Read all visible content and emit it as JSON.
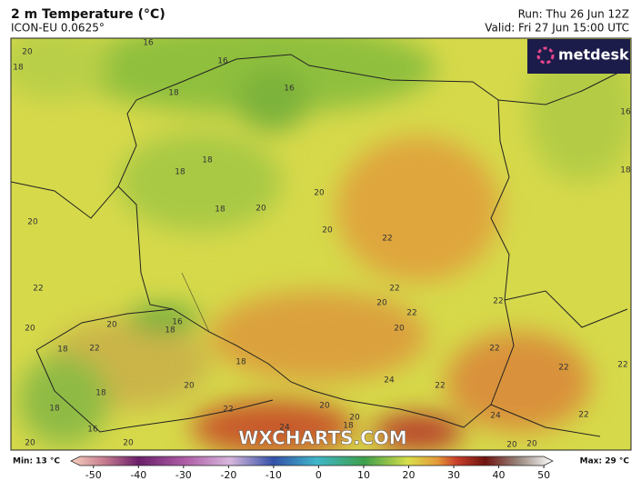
{
  "header": {
    "title": "2 m Temperature (°C)",
    "model": "ICON-EU 0.0625°",
    "run": "Run: Thu 26 Jun 12Z",
    "valid": "Valid: Fri 27 Jun 15:00 UTC"
  },
  "brand": "metdesk",
  "watermark": "WXCHARTS.COM",
  "contour_labels": [
    16,
    16,
    16,
    20,
    18,
    18,
    18,
    18,
    18,
    20,
    20,
    20,
    20,
    22,
    22,
    20,
    22,
    20,
    22,
    22,
    20,
    20,
    16,
    18,
    18,
    22,
    18,
    22,
    22,
    22,
    24,
    20,
    18,
    22,
    22,
    20,
    24,
    20,
    18,
    24,
    16,
    18,
    22,
    20,
    20,
    20,
    20,
    16,
    18
  ],
  "colorbar": {
    "min_label": "Min: 13 °C",
    "max_label": "Max: 29 °C",
    "range": [
      -55,
      52
    ],
    "ticks": [
      -50,
      -40,
      -30,
      -20,
      -10,
      0,
      10,
      20,
      30,
      40,
      50
    ]
  }
}
